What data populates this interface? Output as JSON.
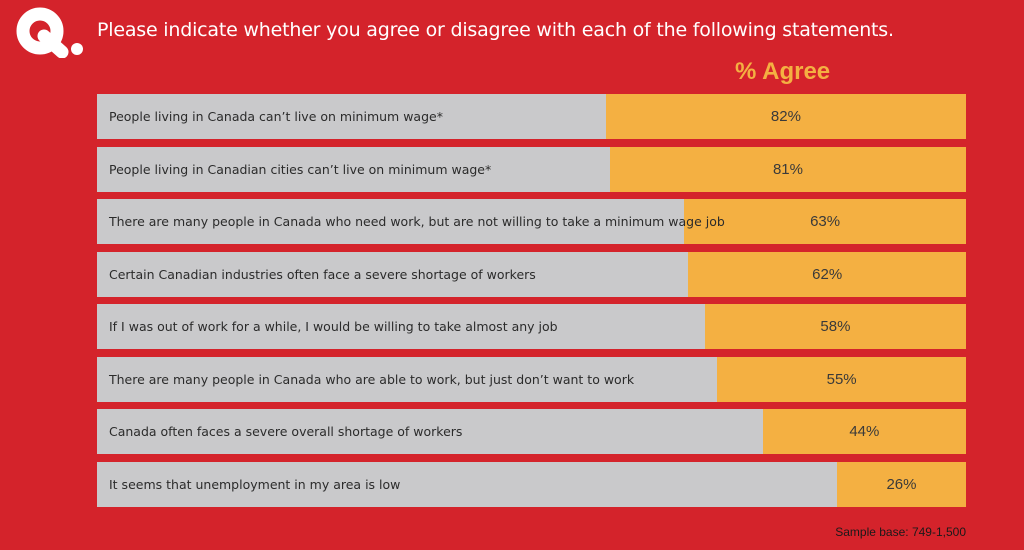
{
  "logo": {
    "icon": "q-logo-icon",
    "color": "#ffffff"
  },
  "question": "Please indicate whether you agree or disagree with each of the following statements.",
  "header": {
    "agree_label": "% Agree"
  },
  "colors": {
    "background": "#d4232b",
    "bar_track": "#c9c9cb",
    "agree_fill": "#f4b042"
  },
  "chart_data": {
    "type": "bar",
    "orientation": "horizontal",
    "categories": [
      "People living in Canada can’t live on minimum wage*",
      "People living in Canadian cities can’t live on minimum wage*",
      "There are many people in Canada who need work, but are not willing to take a minimum wage job",
      "Certain Canadian industries often face a severe shortage of workers",
      "If I was out of work for a while, I would be willing to take almost any job",
      "There are many people in Canada who are able to work, but just don’t want to work",
      "Canada often faces a severe overall shortage of workers",
      "It seems that unemployment in my area is low"
    ],
    "values": [
      82,
      81,
      63,
      62,
      58,
      55,
      44,
      26
    ],
    "value_labels": [
      "82%",
      "81%",
      "63%",
      "62%",
      "58%",
      "55%",
      "44%",
      "26%"
    ],
    "ylim": [
      0,
      100
    ],
    "title": "Please indicate whether you agree or disagree with each of the following statements.",
    "value_header": "% Agree"
  },
  "footer": {
    "sample_base": "Sample base: 749-1,500"
  }
}
